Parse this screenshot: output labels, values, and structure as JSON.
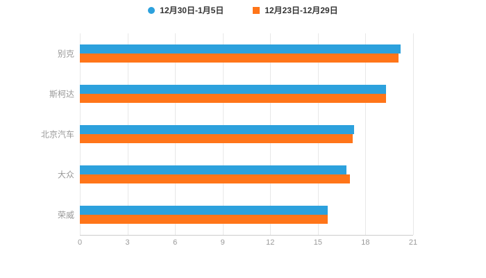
{
  "chart_data": {
    "type": "bar",
    "orientation": "horizontal",
    "title": "",
    "xlabel": "",
    "ylabel": "",
    "categories": [
      "别克",
      "斯柯达",
      "北京汽车",
      "大众",
      "荣威"
    ],
    "series": [
      {
        "name": "12月30日-1月5日",
        "marker": "circle",
        "color": "#2ca1dd",
        "values": [
          20.2,
          19.3,
          17.3,
          16.8,
          15.6
        ]
      },
      {
        "name": "12月23日-12月29日",
        "marker": "square",
        "color": "#ff7519",
        "values": [
          20.1,
          19.3,
          17.2,
          17.0,
          15.6
        ]
      }
    ],
    "xlim": [
      0,
      21
    ],
    "xticks": [
      0,
      3,
      6,
      9,
      12,
      15,
      18,
      21
    ],
    "grid": true,
    "legend_position": "top"
  },
  "colors": {
    "background": "#ffffff",
    "gridline": "#e8e8e8",
    "axis_line": "#cccccc",
    "tick_label": "#999999",
    "legend_text": "#333333",
    "series_blue": "#2ca1dd",
    "series_orange": "#ff7519"
  }
}
